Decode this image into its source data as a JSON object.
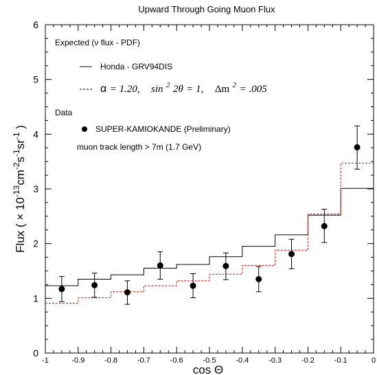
{
  "chart_data": {
    "type": "line",
    "title": "Upward Through Going Muon Flux",
    "xlabel": "cos Θ",
    "ylabel": "Flux ( × 10-13cm-2s-1sr-1 )",
    "ylabel_parts": {
      "lead": "Flux ( ",
      "times": "×",
      "base": " 10",
      "e1": "-13",
      "cm": "cm",
      "e2": "-2",
      "s": "s",
      "e3": "-1",
      "sr": "sr",
      "e4": "-1",
      "tail": " )"
    },
    "xlim": [
      -1,
      0
    ],
    "ylim": [
      0,
      6
    ],
    "x_ticks": [
      "-1",
      "-0.9",
      "-0.8",
      "-0.7",
      "-0.6",
      "-0.5",
      "-0.4",
      "-0.3",
      "-0.2",
      "-0.1",
      "0"
    ],
    "y_ticks": [
      "0",
      "1",
      "2",
      "3",
      "4",
      "5",
      "6"
    ],
    "bin_edges": [
      -1,
      -0.9,
      -0.8,
      -0.7,
      -0.6,
      -0.5,
      -0.4,
      -0.3,
      -0.2,
      -0.1,
      0
    ],
    "bin_centers": [
      -0.95,
      -0.85,
      -0.75,
      -0.65,
      -0.55,
      -0.45,
      -0.35,
      -0.25,
      -0.15,
      -0.05
    ],
    "series": [
      {
        "style": "step-solid",
        "color": "#000000",
        "values": [
          1.23,
          1.35,
          1.43,
          1.55,
          1.62,
          1.76,
          1.95,
          2.16,
          2.52,
          3.01
        ]
      },
      {
        "style": "step-dashed",
        "color": "#e0302a",
        "values": [
          0.91,
          1.01,
          1.12,
          1.23,
          1.32,
          1.44,
          1.6,
          1.88,
          2.54,
          3.47
        ]
      },
      {
        "style": "points-errorbars",
        "color": "#000000",
        "values": [
          1.17,
          1.24,
          1.11,
          1.6,
          1.23,
          1.59,
          1.35,
          1.81,
          2.32,
          3.76
        ],
        "err_low": [
          0.23,
          0.22,
          0.22,
          0.25,
          0.22,
          0.25,
          0.23,
          0.27,
          0.3,
          0.4
        ],
        "err_high": [
          0.23,
          0.22,
          0.21,
          0.25,
          0.22,
          0.24,
          0.23,
          0.27,
          0.31,
          0.39
        ]
      }
    ],
    "legend": {
      "placement": "top-left",
      "heading_expected": "Expected (ν flux - PDF)",
      "solid_label": "Honda - GRV94DIS",
      "dashed_label": {
        "alpha": "α",
        "alpha_val": " = 1.20,",
        "sin": "sin",
        "sin_exp": "2",
        "theta": "2θ",
        "theta_val": " = 1,",
        "dm": "Δm",
        "dm_exp": "2",
        "dm_val": " = .005"
      },
      "heading_data": "Data",
      "points_label": "SUPER-KAMIOKANDE (Preliminary)",
      "note": "muon track length > 7m (1.7 GeV)"
    }
  }
}
